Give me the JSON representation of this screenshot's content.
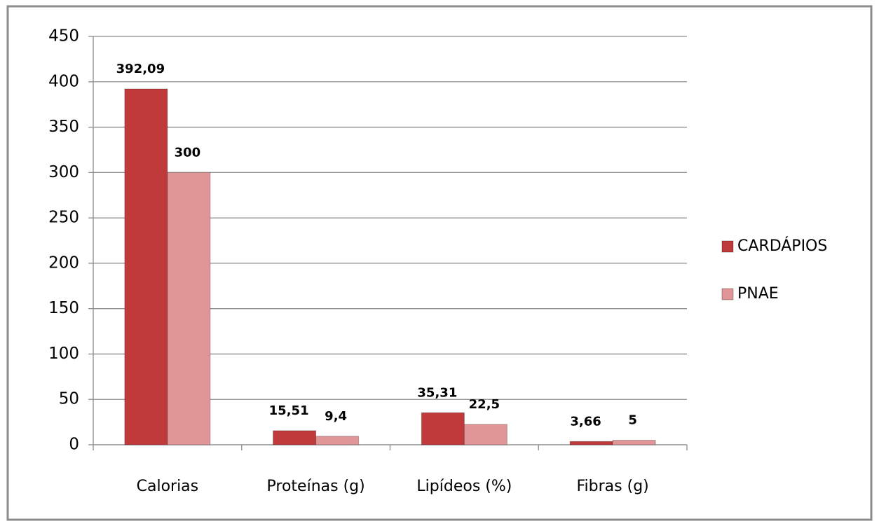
{
  "chart_data": {
    "type": "bar",
    "categories": [
      "Calorias",
      "Proteínas (g)",
      "Lipídeos (%)",
      "Fibras (g)"
    ],
    "series": [
      {
        "name": "CARDÁPIOS",
        "color": "#c0393b",
        "values": [
          392.09,
          15.51,
          35.31,
          3.66
        ],
        "value_labels": [
          "392,09",
          "15,51",
          "35,31",
          "3,66"
        ]
      },
      {
        "name": "PNAE",
        "color": "#e09596",
        "values": [
          300,
          9.4,
          22.5,
          5
        ],
        "value_labels": [
          "300",
          "9,4",
          "22,5",
          "5"
        ]
      }
    ],
    "ylim": [
      0,
      450
    ],
    "yticks": [
      0,
      50,
      100,
      150,
      200,
      250,
      300,
      350,
      400,
      450
    ],
    "grid": true,
    "legend": "right"
  }
}
